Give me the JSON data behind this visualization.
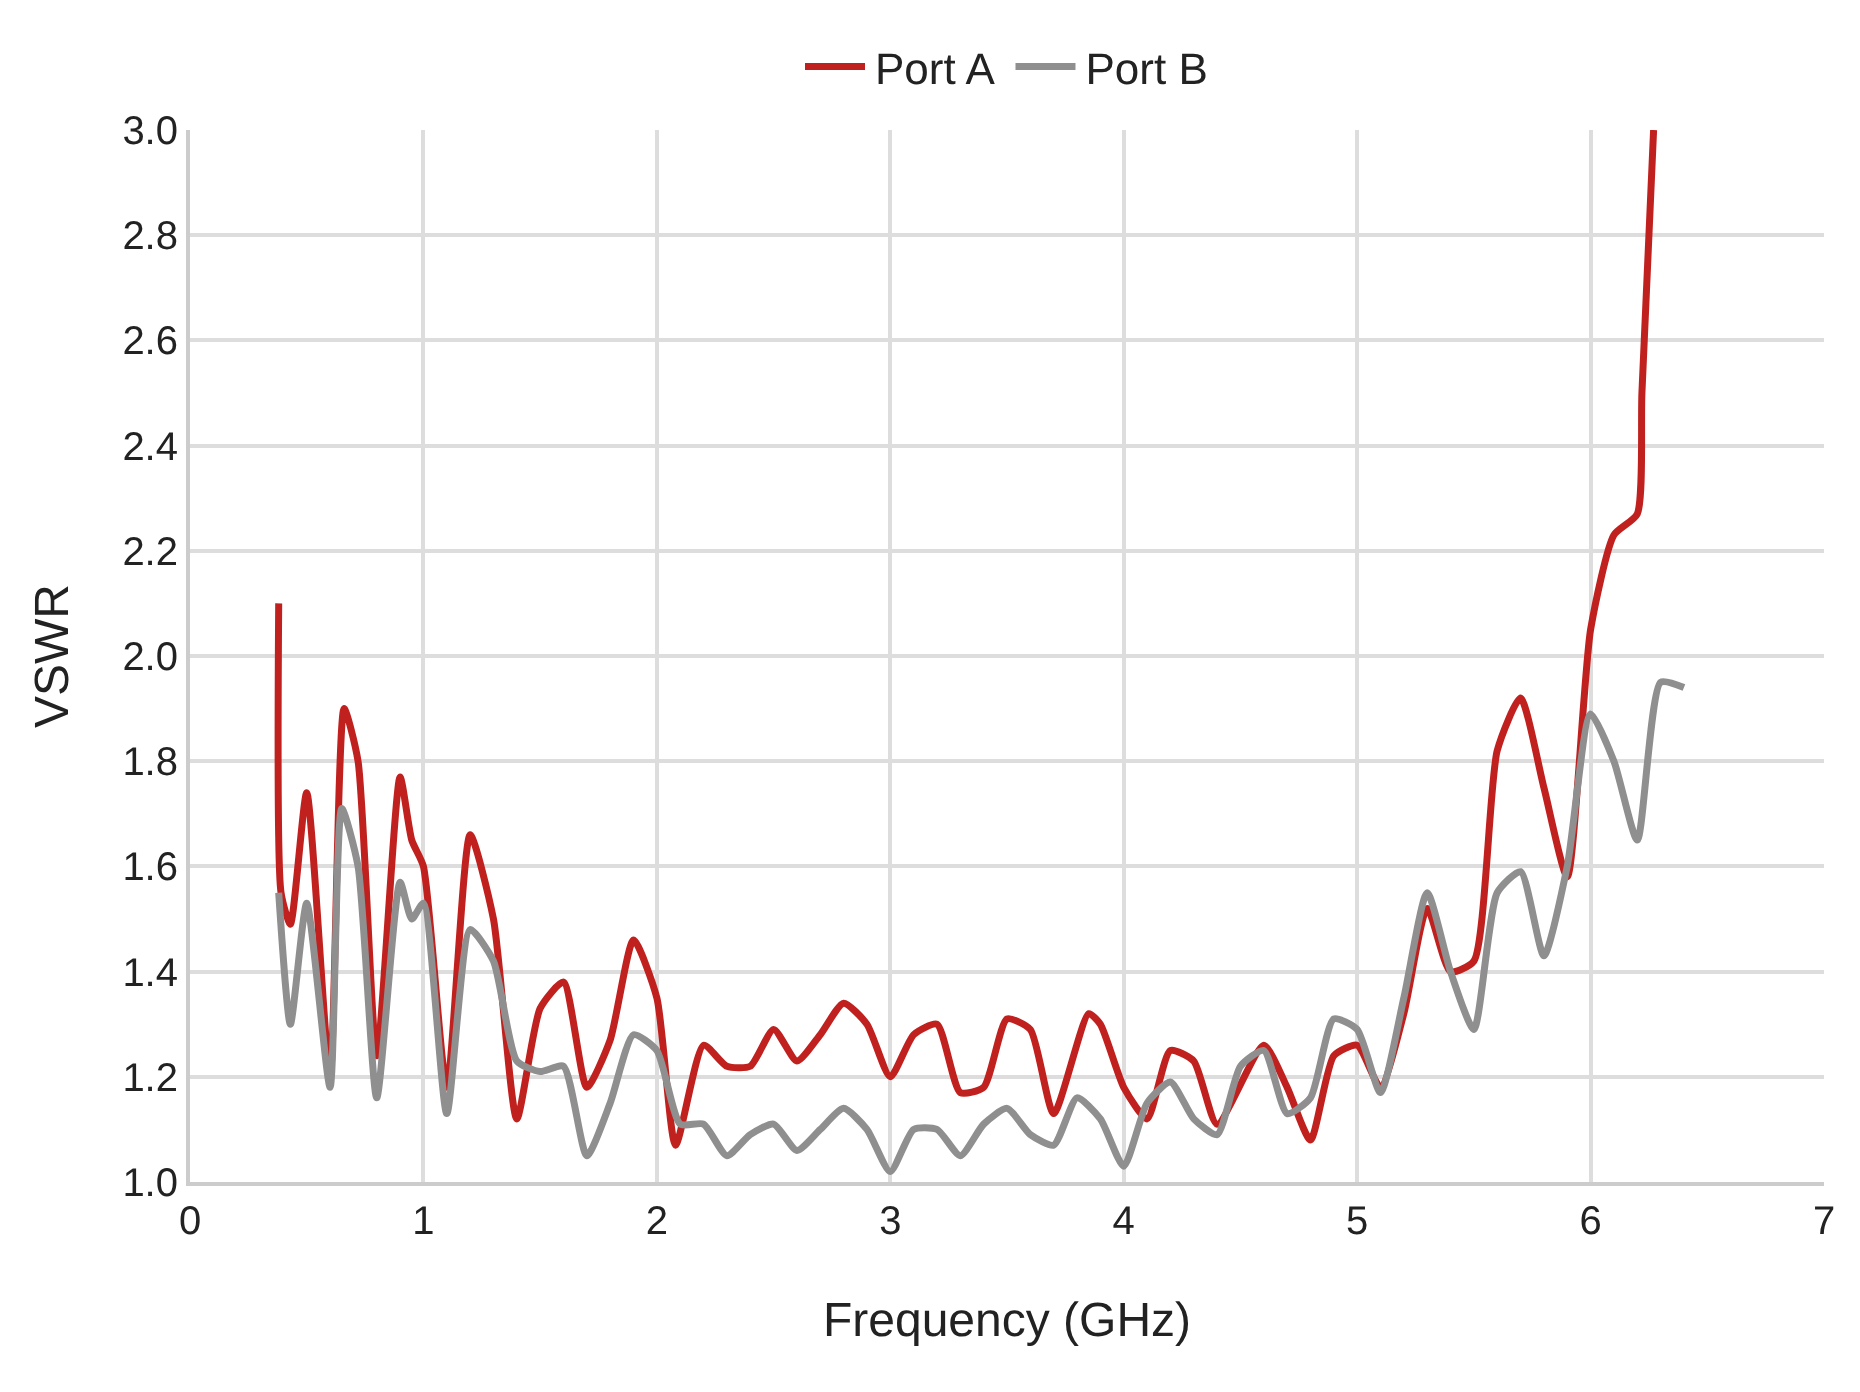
{
  "chart_data": {
    "type": "line",
    "xlabel": "Frequency (GHz)",
    "ylabel": "VSWR",
    "xlim": [
      0,
      7
    ],
    "xticks": [
      0,
      1,
      2,
      3,
      4,
      5,
      6,
      7
    ],
    "ylim": [
      1.0,
      3.0
    ],
    "yticks": [
      {
        "value": 1.0,
        "label": "1.0"
      },
      {
        "value": 1.2,
        "label": "1.2"
      },
      {
        "value": 1.4,
        "label": "1.4"
      },
      {
        "value": 1.6,
        "label": "1.6"
      },
      {
        "value": 1.8,
        "label": "1.8"
      },
      {
        "value": 2.0,
        "label": "2.0"
      },
      {
        "value": 2.2,
        "label": "2.2"
      },
      {
        "value": 2.4,
        "label": "2.4"
      },
      {
        "value": 2.6,
        "label": "2.6"
      },
      {
        "value": 2.8,
        "label": "2.8"
      },
      {
        "value": 3.0,
        "label": "3.0"
      }
    ],
    "grid": true,
    "legend": "top",
    "marker": "none",
    "line_style": "solid",
    "series": [
      {
        "name": "Port A",
        "color": "#c0211f",
        "x": [
          0.38,
          0.39,
          0.43,
          0.5,
          0.6,
          0.66,
          0.72,
          0.8,
          0.9,
          0.95,
          1.0,
          1.1,
          1.2,
          1.3,
          1.4,
          1.5,
          1.6,
          1.7,
          1.8,
          1.9,
          2.0,
          2.08,
          2.2,
          2.3,
          2.4,
          2.5,
          2.6,
          2.7,
          2.8,
          2.9,
          3.0,
          3.1,
          3.2,
          3.3,
          3.4,
          3.5,
          3.6,
          3.7,
          3.85,
          3.9,
          4.0,
          4.1,
          4.2,
          4.3,
          4.4,
          4.6,
          4.7,
          4.8,
          4.9,
          5.0,
          5.1,
          5.2,
          5.3,
          5.4,
          5.5,
          5.6,
          5.7,
          5.8,
          5.9,
          6.0,
          6.1,
          6.2,
          6.22,
          6.27
        ],
        "values": [
          2.1,
          1.55,
          1.49,
          1.74,
          1.2,
          1.9,
          1.8,
          1.24,
          1.77,
          1.65,
          1.6,
          1.18,
          1.66,
          1.5,
          1.12,
          1.33,
          1.38,
          1.18,
          1.27,
          1.46,
          1.35,
          1.07,
          1.26,
          1.22,
          1.22,
          1.29,
          1.23,
          1.28,
          1.34,
          1.3,
          1.2,
          1.28,
          1.3,
          1.17,
          1.18,
          1.31,
          1.29,
          1.13,
          1.32,
          1.3,
          1.18,
          1.12,
          1.25,
          1.23,
          1.11,
          1.26,
          1.18,
          1.08,
          1.24,
          1.26,
          1.18,
          1.32,
          1.52,
          1.4,
          1.42,
          1.82,
          1.92,
          1.75,
          1.58,
          2.05,
          2.23,
          2.27,
          2.5,
          3.0
        ]
      },
      {
        "name": "Port B",
        "color": "#8f8f8f",
        "x": [
          0.38,
          0.43,
          0.5,
          0.6,
          0.65,
          0.72,
          0.8,
          0.9,
          0.95,
          1.0,
          1.1,
          1.2,
          1.3,
          1.4,
          1.5,
          1.6,
          1.7,
          1.8,
          1.9,
          2.0,
          2.1,
          2.2,
          2.3,
          2.4,
          2.5,
          2.6,
          2.7,
          2.8,
          2.9,
          3.0,
          3.1,
          3.2,
          3.3,
          3.4,
          3.5,
          3.6,
          3.7,
          3.8,
          3.9,
          4.0,
          4.1,
          4.2,
          4.3,
          4.4,
          4.5,
          4.6,
          4.7,
          4.8,
          4.9,
          5.0,
          5.1,
          5.2,
          5.3,
          5.4,
          5.5,
          5.6,
          5.7,
          5.8,
          5.9,
          6.0,
          6.1,
          6.2,
          6.3,
          6.4
        ],
        "values": [
          1.55,
          1.3,
          1.53,
          1.18,
          1.71,
          1.6,
          1.16,
          1.57,
          1.5,
          1.53,
          1.13,
          1.48,
          1.42,
          1.23,
          1.21,
          1.22,
          1.05,
          1.15,
          1.28,
          1.25,
          1.11,
          1.11,
          1.05,
          1.09,
          1.11,
          1.06,
          1.1,
          1.14,
          1.1,
          1.02,
          1.1,
          1.1,
          1.05,
          1.11,
          1.14,
          1.09,
          1.07,
          1.16,
          1.12,
          1.03,
          1.15,
          1.19,
          1.12,
          1.09,
          1.22,
          1.25,
          1.13,
          1.16,
          1.31,
          1.29,
          1.17,
          1.35,
          1.55,
          1.4,
          1.29,
          1.55,
          1.59,
          1.43,
          1.6,
          1.89,
          1.8,
          1.65,
          1.95,
          1.94
        ]
      }
    ]
  }
}
